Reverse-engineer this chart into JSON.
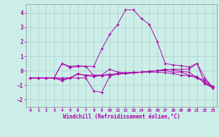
{
  "background_color": "#cceee8",
  "grid_color": "#aacccc",
  "line_color": "#aa00aa",
  "marker": "+",
  "marker_size": 4,
  "xlim": [
    -0.5,
    23.5
  ],
  "ylim": [
    -2.5,
    4.6
  ],
  "yticks": [
    -2,
    -1,
    0,
    1,
    2,
    3,
    4
  ],
  "xticks": [
    0,
    1,
    2,
    3,
    4,
    5,
    6,
    7,
    8,
    9,
    10,
    11,
    12,
    13,
    14,
    15,
    16,
    17,
    18,
    19,
    20,
    21,
    22,
    23
  ],
  "xlabel": "Windchill (Refroidissement éolien,°C)",
  "s1": [
    -0.5,
    -0.5,
    -0.5,
    -0.5,
    0.5,
    0.2,
    0.3,
    0.3,
    -0.35,
    -0.3,
    -0.25,
    -0.2,
    -0.15,
    -0.1,
    -0.1,
    -0.05,
    0.0,
    0.1,
    0.05,
    -0.05,
    -0.1,
    -0.5,
    -0.65,
    -1.15
  ],
  "s2": [
    -0.5,
    -0.5,
    -0.5,
    -0.5,
    -0.6,
    -0.5,
    -0.2,
    -0.35,
    -0.4,
    -0.35,
    -0.3,
    -0.25,
    -0.2,
    -0.15,
    -0.1,
    -0.1,
    -0.1,
    -0.15,
    -0.2,
    -0.3,
    -0.35,
    -0.5,
    -0.8,
    -1.1
  ],
  "s3": [
    -0.5,
    -0.5,
    -0.5,
    -0.5,
    -0.5,
    -0.5,
    -0.5,
    -0.5,
    -1.4,
    -1.5,
    -0.4,
    -0.2,
    -0.2,
    -0.15,
    -0.1,
    -0.05,
    0.0,
    0.0,
    -0.1,
    -0.1,
    -0.3,
    -0.4,
    -0.9,
    -1.15
  ],
  "s4": [
    -0.5,
    -0.5,
    -0.5,
    -0.5,
    0.5,
    0.3,
    0.35,
    0.3,
    0.3,
    1.5,
    2.5,
    3.2,
    4.2,
    4.2,
    3.6,
    3.2,
    2.0,
    0.5,
    0.4,
    0.35,
    0.25,
    0.5,
    -0.9,
    -1.2
  ],
  "s5": [
    -0.5,
    -0.5,
    -0.5,
    -0.5,
    -0.7,
    -0.5,
    -0.25,
    -0.3,
    -0.3,
    -0.3,
    0.1,
    -0.1,
    -0.15,
    -0.15,
    -0.1,
    -0.05,
    0.0,
    0.05,
    0.1,
    0.1,
    0.1,
    0.5,
    -0.5,
    -1.15
  ]
}
